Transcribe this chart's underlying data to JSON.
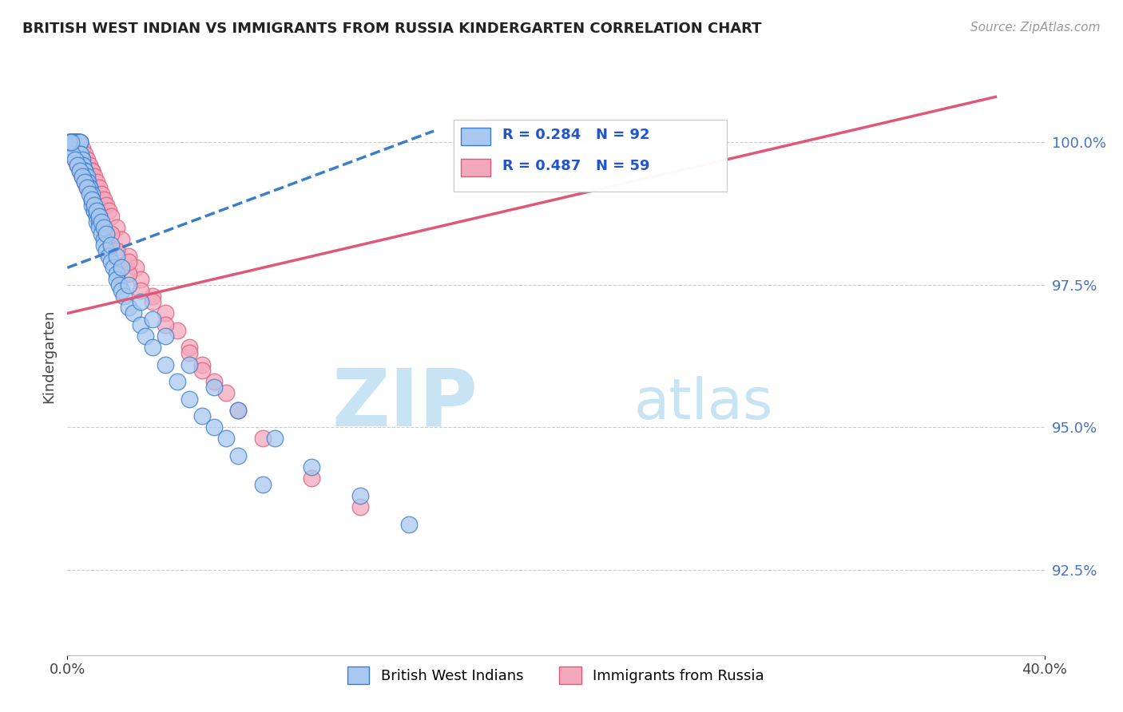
{
  "title": "BRITISH WEST INDIAN VS IMMIGRANTS FROM RUSSIA KINDERGARTEN CORRELATION CHART",
  "source_text": "Source: ZipAtlas.com",
  "ylabel": "Kindergarten",
  "xlim": [
    0.0,
    40.0
  ],
  "ylim": [
    91.0,
    101.5
  ],
  "yticks": [
    92.5,
    95.0,
    97.5,
    100.0
  ],
  "ytick_labels": [
    "92.5%",
    "95.0%",
    "97.5%",
    "100.0%"
  ],
  "xticks": [
    0.0,
    40.0
  ],
  "xtick_labels": [
    "0.0%",
    "40.0%"
  ],
  "legend_label1": "British West Indians",
  "legend_label2": "Immigrants from Russia",
  "r1": 0.284,
  "n1": 92,
  "r2": 0.487,
  "n2": 59,
  "color_blue": "#A8C8F0",
  "color_pink": "#F4A8BC",
  "color_blue_dark": "#3A7EC8",
  "color_pink_dark": "#E05878",
  "watermark_zip": "ZIP",
  "watermark_atlas": "atlas",
  "watermark_color_zip": "#C8E4F4",
  "watermark_color_atlas": "#C8E4F4",
  "blue_scatter_x": [
    0.1,
    0.15,
    0.2,
    0.2,
    0.25,
    0.3,
    0.3,
    0.35,
    0.4,
    0.4,
    0.45,
    0.5,
    0.5,
    0.5,
    0.55,
    0.6,
    0.6,
    0.65,
    0.7,
    0.7,
    0.75,
    0.8,
    0.8,
    0.85,
    0.9,
    0.9,
    1.0,
    1.0,
    1.0,
    1.1,
    1.1,
    1.2,
    1.2,
    1.3,
    1.3,
    1.4,
    1.5,
    1.5,
    1.6,
    1.7,
    1.8,
    1.9,
    2.0,
    2.0,
    2.1,
    2.2,
    2.3,
    2.5,
    2.7,
    3.0,
    3.2,
    3.5,
    4.0,
    4.5,
    5.0,
    5.5,
    6.0,
    6.5,
    7.0,
    8.0,
    0.1,
    0.2,
    0.3,
    0.4,
    0.5,
    0.6,
    0.7,
    0.8,
    0.9,
    1.0,
    1.1,
    1.2,
    1.3,
    1.4,
    1.5,
    1.6,
    1.8,
    2.0,
    2.2,
    2.5,
    3.0,
    3.5,
    4.0,
    5.0,
    6.0,
    7.0,
    8.5,
    10.0,
    12.0,
    14.0,
    0.05,
    0.15
  ],
  "blue_scatter_y": [
    100.0,
    100.0,
    100.0,
    100.0,
    100.0,
    100.0,
    100.0,
    100.0,
    100.0,
    100.0,
    100.0,
    100.0,
    100.0,
    99.8,
    99.8,
    99.7,
    99.6,
    99.6,
    99.5,
    99.5,
    99.4,
    99.4,
    99.3,
    99.3,
    99.2,
    99.2,
    99.1,
    99.0,
    98.9,
    98.8,
    98.8,
    98.7,
    98.6,
    98.6,
    98.5,
    98.4,
    98.3,
    98.2,
    98.1,
    98.0,
    97.9,
    97.8,
    97.7,
    97.6,
    97.5,
    97.4,
    97.3,
    97.1,
    97.0,
    96.8,
    96.6,
    96.4,
    96.1,
    95.8,
    95.5,
    95.2,
    95.0,
    94.8,
    94.5,
    94.0,
    99.9,
    99.8,
    99.7,
    99.6,
    99.5,
    99.4,
    99.3,
    99.2,
    99.1,
    99.0,
    98.9,
    98.8,
    98.7,
    98.6,
    98.5,
    98.4,
    98.2,
    98.0,
    97.8,
    97.5,
    97.2,
    96.9,
    96.6,
    96.1,
    95.7,
    95.3,
    94.8,
    94.3,
    93.8,
    93.3,
    100.0,
    100.0
  ],
  "pink_scatter_x": [
    0.1,
    0.15,
    0.2,
    0.25,
    0.3,
    0.35,
    0.4,
    0.45,
    0.5,
    0.6,
    0.7,
    0.8,
    0.9,
    1.0,
    1.0,
    1.1,
    1.2,
    1.3,
    1.4,
    1.5,
    1.6,
    1.7,
    1.8,
    2.0,
    2.2,
    2.5,
    2.8,
    3.0,
    3.5,
    4.0,
    4.5,
    5.0,
    5.5,
    6.0,
    7.0,
    8.0,
    10.0,
    12.0,
    0.3,
    0.5,
    0.7,
    1.0,
    1.3,
    1.6,
    2.0,
    2.5,
    3.0,
    4.0,
    5.0,
    6.5,
    0.2,
    0.4,
    0.6,
    0.8,
    1.2,
    1.8,
    2.5,
    3.5,
    5.5
  ],
  "pink_scatter_y": [
    100.0,
    100.0,
    100.0,
    100.0,
    100.0,
    100.0,
    100.0,
    100.0,
    100.0,
    99.9,
    99.8,
    99.7,
    99.6,
    99.5,
    99.5,
    99.4,
    99.3,
    99.2,
    99.1,
    99.0,
    98.9,
    98.8,
    98.7,
    98.5,
    98.3,
    98.0,
    97.8,
    97.6,
    97.3,
    97.0,
    96.7,
    96.4,
    96.1,
    95.8,
    95.3,
    94.8,
    94.1,
    93.6,
    99.7,
    99.5,
    99.3,
    99.0,
    98.7,
    98.4,
    98.1,
    97.7,
    97.4,
    96.8,
    96.3,
    95.6,
    99.8,
    99.6,
    99.4,
    99.2,
    98.8,
    98.4,
    97.9,
    97.2,
    96.0
  ],
  "blue_trendline_x": [
    0.0,
    15.0
  ],
  "blue_trendline_y": [
    97.8,
    100.2
  ],
  "pink_trendline_x": [
    0.0,
    38.0
  ],
  "pink_trendline_y": [
    97.0,
    100.8
  ]
}
